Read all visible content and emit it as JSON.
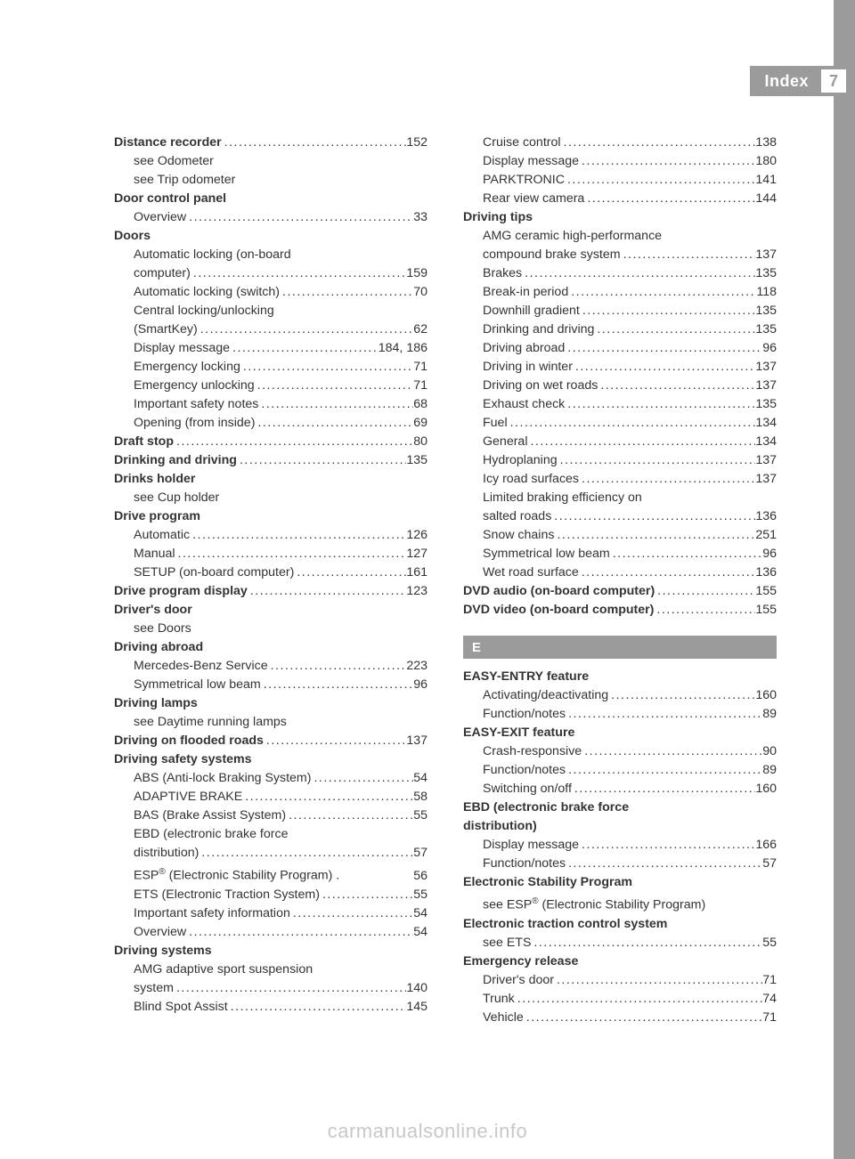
{
  "header": {
    "title": "Index",
    "page_number": "7"
  },
  "section_letter": "E",
  "footer": "carmanualsonline.info",
  "left": [
    {
      "bold": true,
      "indent": 0,
      "label": "Distance recorder",
      "page": "152"
    },
    {
      "bold": false,
      "indent": 1,
      "label": "see Odometer"
    },
    {
      "bold": false,
      "indent": 1,
      "label": "see Trip odometer"
    },
    {
      "bold": true,
      "indent": 0,
      "label": "Door control panel"
    },
    {
      "bold": false,
      "indent": 1,
      "label": "Overview",
      "page": "33"
    },
    {
      "bold": true,
      "indent": 0,
      "label": "Doors"
    },
    {
      "bold": false,
      "indent": 1,
      "label": "Automatic locking (on-board"
    },
    {
      "bold": false,
      "indent": 1,
      "label": "computer)",
      "page": "159"
    },
    {
      "bold": false,
      "indent": 1,
      "label": "Automatic locking (switch)",
      "page": "70"
    },
    {
      "bold": false,
      "indent": 1,
      "label": "Central locking/unlocking"
    },
    {
      "bold": false,
      "indent": 1,
      "label": "(SmartKey)",
      "page": "62"
    },
    {
      "bold": false,
      "indent": 1,
      "label": "Display message",
      "page": "184, 186"
    },
    {
      "bold": false,
      "indent": 1,
      "label": "Emergency locking",
      "page": "71"
    },
    {
      "bold": false,
      "indent": 1,
      "label": "Emergency unlocking",
      "page": "71"
    },
    {
      "bold": false,
      "indent": 1,
      "label": "Important safety notes",
      "page": "68"
    },
    {
      "bold": false,
      "indent": 1,
      "label": "Opening (from inside)",
      "page": "69"
    },
    {
      "bold": true,
      "indent": 0,
      "label": "Draft stop",
      "page": "80"
    },
    {
      "bold": true,
      "indent": 0,
      "label": "Drinking and driving",
      "page": "135"
    },
    {
      "bold": true,
      "indent": 0,
      "label": "Drinks holder"
    },
    {
      "bold": false,
      "indent": 1,
      "label": "see Cup holder"
    },
    {
      "bold": true,
      "indent": 0,
      "label": "Drive program"
    },
    {
      "bold": false,
      "indent": 1,
      "label": "Automatic",
      "page": "126"
    },
    {
      "bold": false,
      "indent": 1,
      "label": "Manual",
      "page": "127"
    },
    {
      "bold": false,
      "indent": 1,
      "label": "SETUP (on-board computer)",
      "page": "161"
    },
    {
      "bold": true,
      "indent": 0,
      "label": "Drive program display",
      "page": "123"
    },
    {
      "bold": true,
      "indent": 0,
      "label": "Driver's door"
    },
    {
      "bold": false,
      "indent": 1,
      "label": "see Doors"
    },
    {
      "bold": true,
      "indent": 0,
      "label": "Driving abroad"
    },
    {
      "bold": false,
      "indent": 1,
      "label": "Mercedes-Benz Service",
      "page": "223"
    },
    {
      "bold": false,
      "indent": 1,
      "label": "Symmetrical low beam",
      "page": "96"
    },
    {
      "bold": true,
      "indent": 0,
      "label": "Driving lamps"
    },
    {
      "bold": false,
      "indent": 1,
      "label": "see Daytime running lamps"
    },
    {
      "bold": true,
      "indent": 0,
      "label": "Driving on flooded roads",
      "page": "137"
    },
    {
      "bold": true,
      "indent": 0,
      "label": "Driving safety systems"
    },
    {
      "bold": false,
      "indent": 1,
      "label": "ABS (Anti-lock Braking System)",
      "page": "54"
    },
    {
      "bold": false,
      "indent": 1,
      "label": "ADAPTIVE BRAKE",
      "page": "58"
    },
    {
      "bold": false,
      "indent": 1,
      "label": "BAS (Brake Assist System)",
      "page": "55"
    },
    {
      "bold": false,
      "indent": 1,
      "label": "EBD (electronic brake force"
    },
    {
      "bold": false,
      "indent": 1,
      "label": "distribution)",
      "page": "57"
    },
    {
      "bold": false,
      "indent": 1,
      "label": "ESP® (Electronic Stability Program) .",
      "page": "56",
      "nodots": true
    },
    {
      "bold": false,
      "indent": 1,
      "label": "ETS (Electronic Traction System)",
      "page": "55"
    },
    {
      "bold": false,
      "indent": 1,
      "label": "Important safety information",
      "page": "54"
    },
    {
      "bold": false,
      "indent": 1,
      "label": "Overview",
      "page": "54"
    },
    {
      "bold": true,
      "indent": 0,
      "label": "Driving systems"
    },
    {
      "bold": false,
      "indent": 1,
      "label": "AMG adaptive sport suspension"
    },
    {
      "bold": false,
      "indent": 1,
      "label": "system",
      "page": "140"
    },
    {
      "bold": false,
      "indent": 1,
      "label": "Blind Spot Assist",
      "page": "145"
    }
  ],
  "right_a": [
    {
      "bold": false,
      "indent": 1,
      "label": "Cruise control",
      "page": "138"
    },
    {
      "bold": false,
      "indent": 1,
      "label": "Display message",
      "page": "180"
    },
    {
      "bold": false,
      "indent": 1,
      "label": "PARKTRONIC",
      "page": "141"
    },
    {
      "bold": false,
      "indent": 1,
      "label": "Rear view camera",
      "page": "144"
    },
    {
      "bold": true,
      "indent": 0,
      "label": "Driving tips"
    },
    {
      "bold": false,
      "indent": 1,
      "label": "AMG ceramic high-performance"
    },
    {
      "bold": false,
      "indent": 1,
      "label": "compound brake system",
      "page": "137"
    },
    {
      "bold": false,
      "indent": 1,
      "label": "Brakes",
      "page": "135"
    },
    {
      "bold": false,
      "indent": 1,
      "label": "Break-in period",
      "page": "118"
    },
    {
      "bold": false,
      "indent": 1,
      "label": "Downhill gradient",
      "page": "135"
    },
    {
      "bold": false,
      "indent": 1,
      "label": "Drinking and driving",
      "page": "135"
    },
    {
      "bold": false,
      "indent": 1,
      "label": "Driving abroad",
      "page": "96"
    },
    {
      "bold": false,
      "indent": 1,
      "label": "Driving in winter",
      "page": "137"
    },
    {
      "bold": false,
      "indent": 1,
      "label": "Driving on wet roads",
      "page": "137"
    },
    {
      "bold": false,
      "indent": 1,
      "label": "Exhaust check",
      "page": "135"
    },
    {
      "bold": false,
      "indent": 1,
      "label": "Fuel",
      "page": "134"
    },
    {
      "bold": false,
      "indent": 1,
      "label": "General",
      "page": "134"
    },
    {
      "bold": false,
      "indent": 1,
      "label": "Hydroplaning",
      "page": "137"
    },
    {
      "bold": false,
      "indent": 1,
      "label": "Icy road surfaces",
      "page": "137"
    },
    {
      "bold": false,
      "indent": 1,
      "label": "Limited braking efficiency on"
    },
    {
      "bold": false,
      "indent": 1,
      "label": "salted roads",
      "page": "136"
    },
    {
      "bold": false,
      "indent": 1,
      "label": "Snow chains",
      "page": "251"
    },
    {
      "bold": false,
      "indent": 1,
      "label": "Symmetrical low beam",
      "page": "96"
    },
    {
      "bold": false,
      "indent": 1,
      "label": "Wet road surface",
      "page": "136"
    },
    {
      "bold": true,
      "indent": 0,
      "label": "DVD audio (on-board computer)",
      "page": "155"
    },
    {
      "bold": true,
      "indent": 0,
      "label": "DVD video (on-board computer)",
      "page": "155"
    }
  ],
  "right_b": [
    {
      "bold": true,
      "indent": 0,
      "label": "EASY-ENTRY feature"
    },
    {
      "bold": false,
      "indent": 1,
      "label": "Activating/deactivating",
      "page": "160"
    },
    {
      "bold": false,
      "indent": 1,
      "label": "Function/notes",
      "page": "89"
    },
    {
      "bold": true,
      "indent": 0,
      "label": "EASY-EXIT feature"
    },
    {
      "bold": false,
      "indent": 1,
      "label": "Crash-responsive",
      "page": "90"
    },
    {
      "bold": false,
      "indent": 1,
      "label": "Function/notes",
      "page": "89"
    },
    {
      "bold": false,
      "indent": 1,
      "label": "Switching on/off",
      "page": "160"
    },
    {
      "bold": true,
      "indent": 0,
      "label": "EBD (electronic brake force"
    },
    {
      "bold": true,
      "indent": 0,
      "label": "distribution)"
    },
    {
      "bold": false,
      "indent": 1,
      "label": "Display message",
      "page": "166"
    },
    {
      "bold": false,
      "indent": 1,
      "label": "Function/notes",
      "page": "57"
    },
    {
      "bold": true,
      "indent": 0,
      "label": "Electronic Stability Program"
    },
    {
      "bold": false,
      "indent": 1,
      "label": "see ESP® (Electronic Stability Program)"
    },
    {
      "bold": true,
      "indent": 0,
      "label": "Electronic traction control system"
    },
    {
      "bold": false,
      "indent": 1,
      "label": "see ETS",
      "page": "55"
    },
    {
      "bold": true,
      "indent": 0,
      "label": "Emergency release"
    },
    {
      "bold": false,
      "indent": 1,
      "label": "Driver's door",
      "page": "71"
    },
    {
      "bold": false,
      "indent": 1,
      "label": "Trunk",
      "page": "74"
    },
    {
      "bold": false,
      "indent": 1,
      "label": "Vehicle",
      "page": "71"
    }
  ]
}
